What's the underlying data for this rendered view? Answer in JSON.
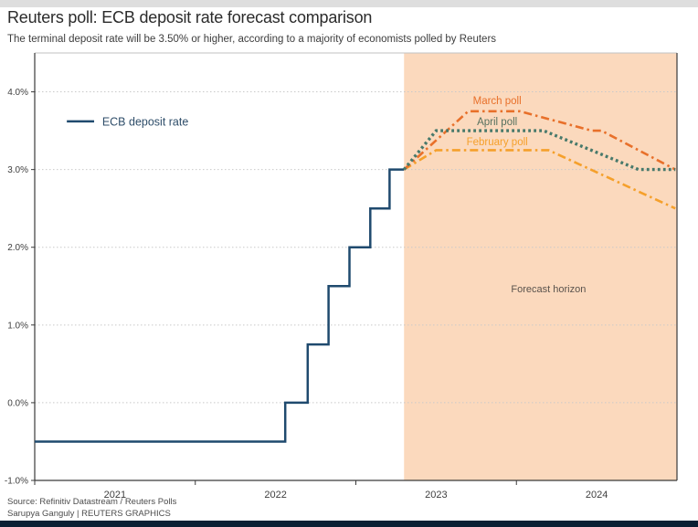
{
  "header": {
    "title": "Reuters poll: ECB deposit rate forecast comparison",
    "subtitle": "The terminal deposit rate will be 3.50% or higher, according to a majority of economists polled by Reuters"
  },
  "footer": {
    "source": "Source: Refinitiv Datastream / Reuters Polls",
    "credit": "Sarupya Ganguly | REUTERS GRAPHICS"
  },
  "colors": {
    "background": "#ffffff",
    "top_strip": "#dedede",
    "bottom_bar": "#0b1f33",
    "grid": "#c9c9c9",
    "frame_light": "#c2c2c2",
    "frame_dark": "#3a3a3a",
    "axis_text": "#3f3f3f",
    "forecast_fill": "#fbd9bd",
    "forecast_label": "#5a534d",
    "legend_text": "#2f4e6a"
  },
  "chart_data": {
    "type": "line",
    "title": "Reuters poll: ECB deposit rate forecast comparison",
    "x_domain": [
      2021,
      2025
    ],
    "y_domain": [
      -1.0,
      4.5
    ],
    "grid": true,
    "y_ticks": [
      {
        "value": 4.0,
        "label": "4.0%",
        "gridline": true
      },
      {
        "value": 3.0,
        "label": "3.0%",
        "gridline": true
      },
      {
        "value": 2.0,
        "label": "2.0%",
        "gridline": true
      },
      {
        "value": 1.0,
        "label": "1.0%",
        "gridline": true
      },
      {
        "value": 0.0,
        "label": "0.0%",
        "gridline": true
      },
      {
        "value": -1.0,
        "label": "-1.0%",
        "gridline": false
      }
    ],
    "x_ticks": [
      {
        "value": 2021,
        "label": "2021"
      },
      {
        "value": 2022,
        "label": "2022"
      },
      {
        "value": 2023,
        "label": "2023"
      },
      {
        "value": 2024,
        "label": "2024"
      }
    ],
    "forecast_region": {
      "start": 2023.3,
      "end": 2025,
      "label": "Forecast horizon",
      "label_x": 2024.2,
      "label_y": 1.47,
      "fill": "#fbd9bd"
    },
    "legend": {
      "label": "ECB deposit rate",
      "line_x1": 2021.2,
      "line_x2": 2021.37,
      "text_x": 2021.42,
      "y": 3.62
    },
    "series": [
      {
        "name": "ECB deposit rate",
        "color": "#1f4a6e",
        "style": "solid",
        "width": 2.5,
        "points": [
          [
            2021.0,
            -0.5
          ],
          [
            2022.56,
            -0.5
          ],
          [
            2022.56,
            0.0
          ],
          [
            2022.7,
            0.0
          ],
          [
            2022.7,
            0.75
          ],
          [
            2022.83,
            0.75
          ],
          [
            2022.83,
            1.5
          ],
          [
            2022.96,
            1.5
          ],
          [
            2022.96,
            2.0
          ],
          [
            2023.09,
            2.0
          ],
          [
            2023.09,
            2.5
          ],
          [
            2023.21,
            2.5
          ],
          [
            2023.21,
            3.0
          ],
          [
            2023.3,
            3.0
          ]
        ]
      },
      {
        "name": "February poll",
        "color": "#f5a02b",
        "label_color": "#f5a02b",
        "style": "dashdot",
        "width": 2.6,
        "label_x": 2023.88,
        "label_y": 3.36,
        "points": [
          [
            2023.3,
            3.0
          ],
          [
            2023.5,
            3.25
          ],
          [
            2024.2,
            3.25
          ],
          [
            2024.99,
            2.5
          ]
        ]
      },
      {
        "name": "March poll",
        "color": "#e8702a",
        "label_color": "#e8702a",
        "style": "dashdot",
        "width": 2.6,
        "label_x": 2023.88,
        "label_y": 3.89,
        "points": [
          [
            2023.3,
            3.0
          ],
          [
            2023.7,
            3.75
          ],
          [
            2024.02,
            3.75
          ],
          [
            2024.47,
            3.5
          ],
          [
            2024.53,
            3.5
          ],
          [
            2024.99,
            3.0
          ]
        ]
      },
      {
        "name": "April poll",
        "color": "#47796b",
        "label_color": "#56715f",
        "style": "dotted",
        "width": 3.4,
        "label_x": 2023.88,
        "label_y": 3.62,
        "points": [
          [
            2023.3,
            3.0
          ],
          [
            2023.5,
            3.5
          ],
          [
            2024.17,
            3.5
          ],
          [
            2024.76,
            3.0
          ],
          [
            2024.99,
            3.0
          ]
        ]
      }
    ]
  }
}
